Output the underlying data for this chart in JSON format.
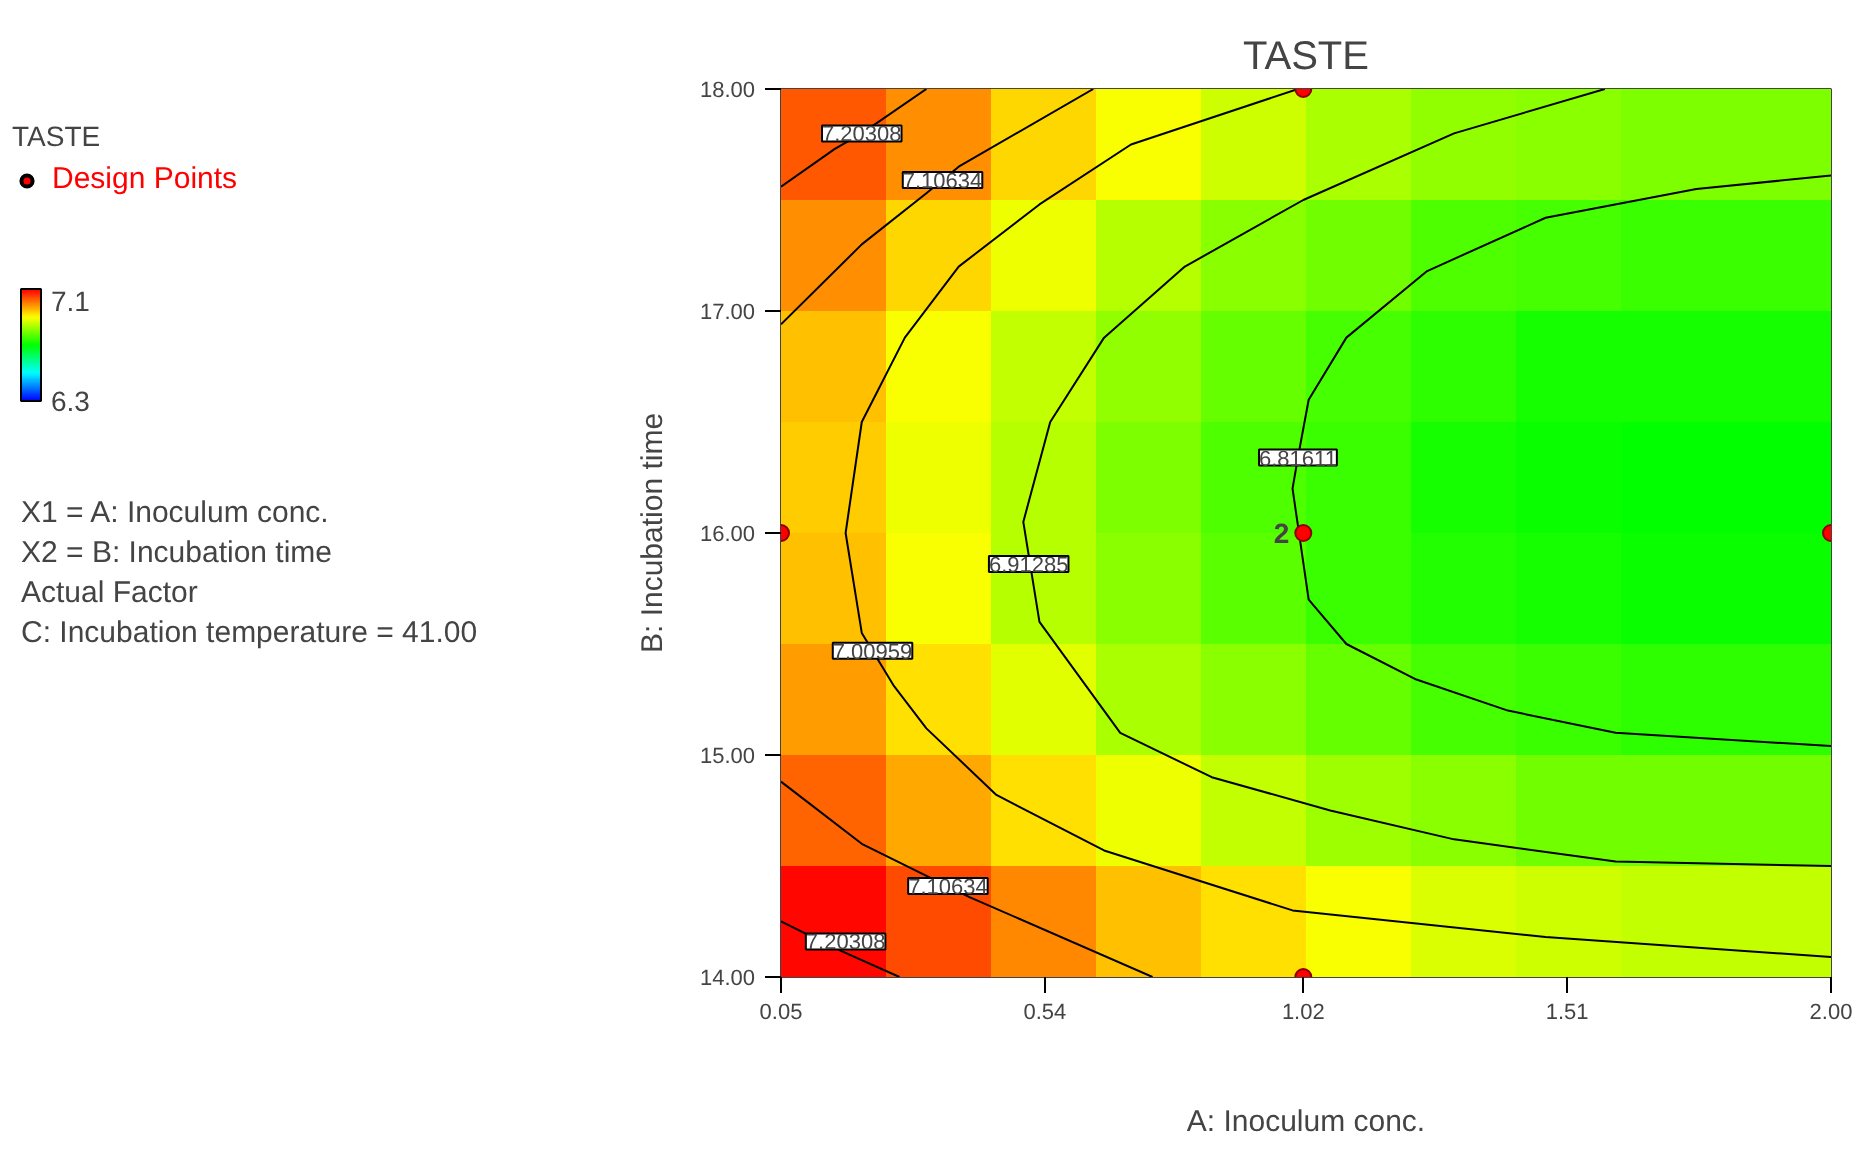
{
  "chart_data": {
    "type": "heatmap",
    "title": "TASTE",
    "xlabel": "A: Inoculum conc.",
    "ylabel": "B: Incubation time",
    "legend_title": "TASTE",
    "legend": "left",
    "cells": [
      [
        7.12,
        7.07,
        7.01,
        6.97,
        6.93,
        6.9,
        6.88,
        6.87,
        6.86,
        6.86
      ],
      [
        7.07,
        7.01,
        6.96,
        6.91,
        6.87,
        6.85,
        6.82,
        6.81,
        6.8,
        6.8
      ],
      [
        7.03,
        6.97,
        6.92,
        6.88,
        6.84,
        6.81,
        6.79,
        6.77,
        6.77,
        6.77
      ],
      [
        7.02,
        6.96,
        6.91,
        6.86,
        6.82,
        6.8,
        6.77,
        6.76,
        6.75,
        6.75
      ],
      [
        7.03,
        6.97,
        6.91,
        6.87,
        6.83,
        6.8,
        6.78,
        6.77,
        6.76,
        6.76
      ],
      [
        7.06,
        7.0,
        6.95,
        6.9,
        6.87,
        6.84,
        6.81,
        6.8,
        6.79,
        6.79
      ],
      [
        7.11,
        7.05,
        7.0,
        6.96,
        6.92,
        6.89,
        6.87,
        6.85,
        6.85,
        6.85
      ],
      [
        7.19,
        7.13,
        7.08,
        7.03,
        7.0,
        6.97,
        6.94,
        6.93,
        6.92,
        6.92
      ]
    ],
    "clim": [
      6.3,
      7.2
    ],
    "cticks": [
      6.3,
      7.1
    ],
    "xlim": [
      0.05,
      2.0
    ],
    "ylim": [
      14,
      18
    ],
    "xticks": [
      0.05,
      0.54,
      1.02,
      1.51,
      {
        "value": 2.0,
        "label": "2.00"
      }
    ],
    "yticks": [
      {
        "value": 14,
        "label": "14.00"
      },
      {
        "value": 15,
        "label": "15.00"
      },
      {
        "value": 16,
        "label": "16.00"
      },
      {
        "value": 17,
        "label": "17.00"
      },
      {
        "value": 18,
        "label": "18.00"
      }
    ],
    "series": [
      {
        "type": "line",
        "color": "#000000",
        "x": [
          0.05,
          0.15,
          0.2,
          0.32
        ],
        "values": [
          17.56,
          17.73,
          17.8,
          18.0
        ]
      },
      {
        "type": "line",
        "color": "#000000",
        "x": [
          0.05,
          0.15,
          0.27
        ],
        "values": [
          14.25,
          14.13,
          14.0
        ]
      },
      {
        "type": "line",
        "color": "#000000",
        "x": [
          0.05,
          0.2,
          0.32,
          0.35,
          0.38,
          0.63
        ],
        "values": [
          16.94,
          17.3,
          17.53,
          17.59,
          17.65,
          18.0
        ]
      },
      {
        "type": "line",
        "color": "#000000",
        "x": [
          0.05,
          0.2,
          0.4,
          0.74
        ],
        "values": [
          14.88,
          14.6,
          14.36,
          14.0
        ]
      },
      {
        "type": "line",
        "color": "#000000",
        "x": [
          1.01,
          0.7,
          0.53,
          0.38,
          0.28,
          0.2,
          0.17,
          0.2,
          0.22,
          0.26,
          0.32,
          0.45,
          0.65,
          1.0,
          1.47,
          2.0
        ],
        "values": [
          18.0,
          17.75,
          17.48,
          17.2,
          16.88,
          16.5,
          16.0,
          15.55,
          15.47,
          15.31,
          15.12,
          14.82,
          14.57,
          14.3,
          14.18,
          14.09
        ]
      },
      {
        "type": "line",
        "color": "#000000",
        "x": [
          1.58,
          1.3,
          1.02,
          0.8,
          0.65,
          0.55,
          0.5,
          0.53,
          0.68,
          0.85,
          1.07,
          1.3,
          1.6,
          2.0
        ],
        "values": [
          18.0,
          17.8,
          17.5,
          17.2,
          16.88,
          16.5,
          16.05,
          15.6,
          15.1,
          14.9,
          14.75,
          14.62,
          14.52,
          14.5
        ]
      },
      {
        "type": "line",
        "color": "#000000",
        "x": [
          2.0,
          1.75,
          1.47,
          1.25,
          1.1,
          1.03,
          1.01,
          1.0,
          1.03,
          1.1,
          1.23,
          1.4,
          1.6,
          2.0
        ],
        "values": [
          17.61,
          17.55,
          17.42,
          17.18,
          16.88,
          16.6,
          16.34,
          16.2,
          15.7,
          15.5,
          15.34,
          15.2,
          15.1,
          15.04
        ]
      },
      {
        "type": "scatter",
        "name": "Design Points",
        "color": "#ff0000",
        "marker": "circle",
        "x": [
          0.05,
          1.02,
          1.02,
          2.0,
          1.02
        ],
        "values": [
          16,
          18,
          16,
          16,
          14
        ]
      }
    ],
    "annotations": [
      {
        "text": "7.20308",
        "x": 0.2,
        "y": 17.8
      },
      {
        "text": "7.10634",
        "x": 0.35,
        "y": 17.59
      },
      {
        "text": "6.81611",
        "x": 1.01,
        "y": 16.34
      },
      {
        "text": "6.91285",
        "x": 0.51,
        "y": 15.86
      },
      {
        "text": "7.00959",
        "x": 0.22,
        "y": 15.47
      },
      {
        "text": "7.10634",
        "x": 0.36,
        "y": 14.41
      },
      {
        "text": "7.20308",
        "x": 0.17,
        "y": 14.16
      },
      {
        "text": "2",
        "x": 1.02,
        "y": 16
      },
      "X1 = A: Inoculum conc.",
      "X2 = B: Incubation time",
      "Actual Factor",
      "C: Incubation temperature = 41.00"
    ]
  }
}
